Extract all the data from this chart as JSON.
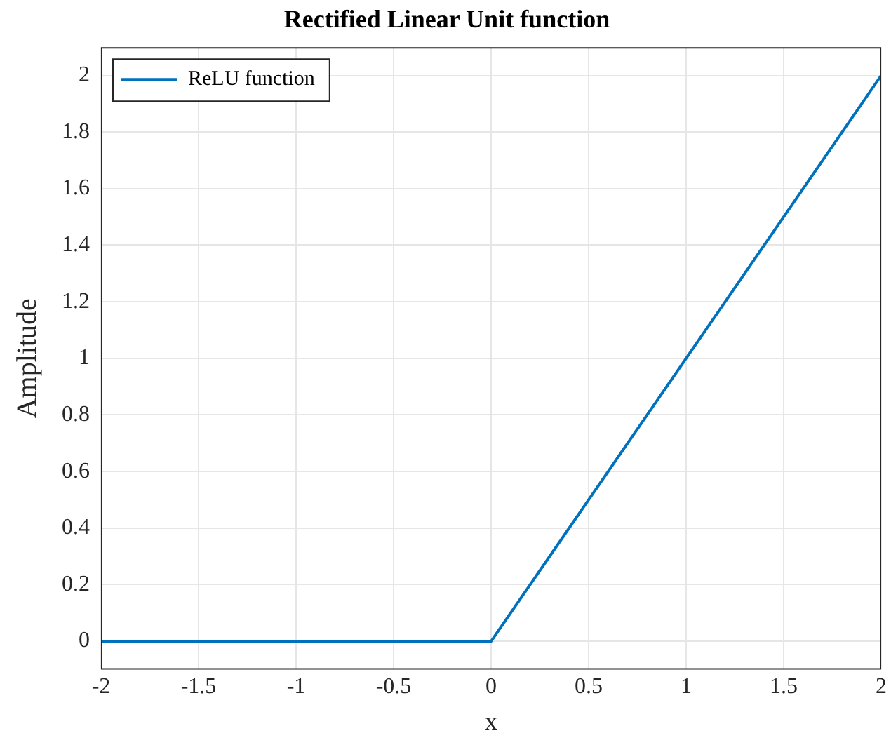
{
  "chart_data": {
    "type": "line",
    "title": "Rectified Linear Unit function",
    "xlabel": "x",
    "ylabel": "Amplitude",
    "x": [
      -2,
      0,
      2
    ],
    "series": [
      {
        "name": "ReLU function",
        "color": "#0072bd",
        "values": [
          0,
          0,
          2
        ]
      }
    ],
    "xlim": [
      -2,
      2
    ],
    "xticks": [
      -2,
      -1.5,
      -1,
      -0.5,
      0,
      0.5,
      1,
      1.5,
      2
    ],
    "ylim": [
      -0.1,
      2.1
    ],
    "yticks": [
      0,
      0.2,
      0.4,
      0.6,
      0.8,
      1,
      1.2,
      1.4,
      1.6,
      1.8,
      2
    ],
    "grid": true,
    "legend": "top left",
    "line_style": "solid",
    "marker": "none"
  }
}
